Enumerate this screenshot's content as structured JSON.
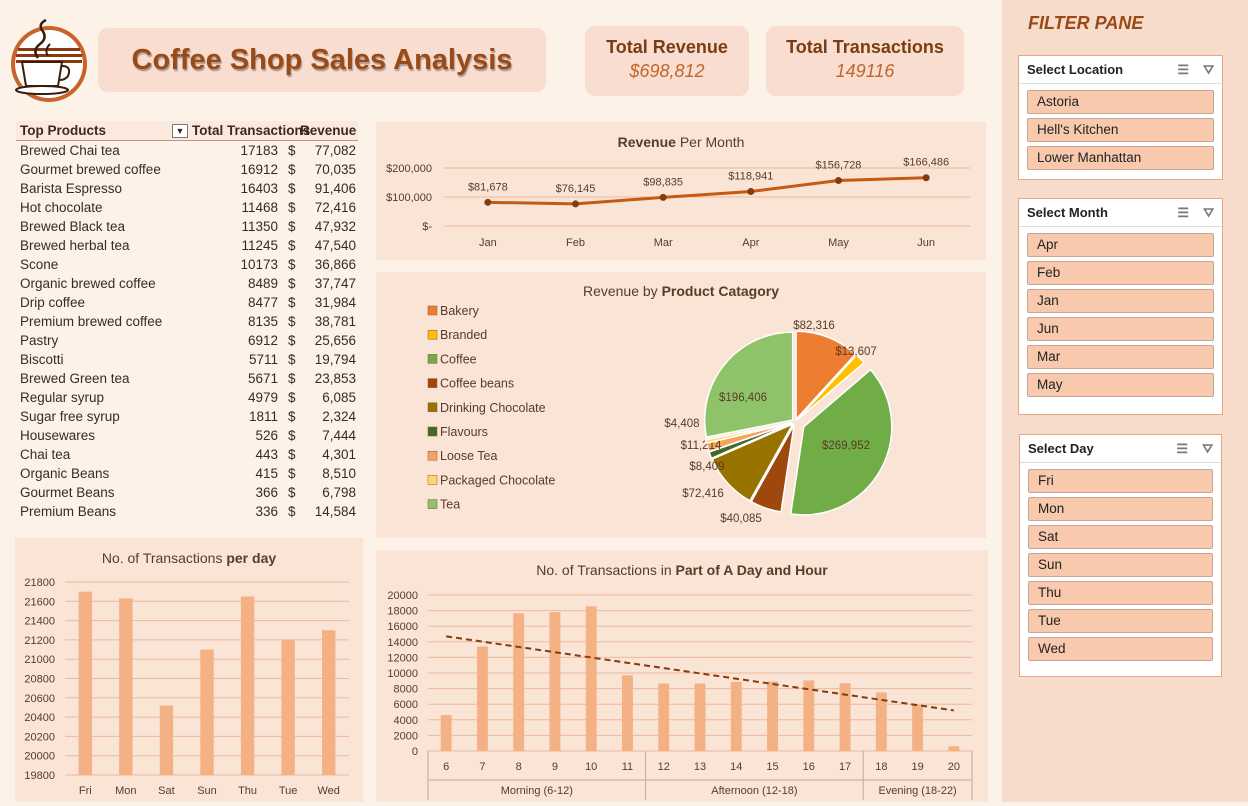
{
  "title": "Coffee Shop Sales Analysis",
  "kpis": {
    "revenue_label": "Total Revenue",
    "revenue_value": "$698,812",
    "trx_label": "Total Transactions",
    "trx_value": "149116"
  },
  "top_products": {
    "headers": [
      "Top Products",
      "Total Transactions",
      "Revenue"
    ],
    "rows": [
      {
        "name": "Brewed Chai tea",
        "trx": "17183",
        "rev": "77,082"
      },
      {
        "name": "Gourmet brewed coffee",
        "trx": "16912",
        "rev": "70,035"
      },
      {
        "name": "Barista Espresso",
        "trx": "16403",
        "rev": "91,406"
      },
      {
        "name": "Hot chocolate",
        "trx": "11468",
        "rev": "72,416"
      },
      {
        "name": "Brewed Black tea",
        "trx": "11350",
        "rev": "47,932"
      },
      {
        "name": "Brewed herbal tea",
        "trx": "11245",
        "rev": "47,540"
      },
      {
        "name": "Scone",
        "trx": "10173",
        "rev": "36,866"
      },
      {
        "name": "Organic brewed coffee",
        "trx": "8489",
        "rev": "37,747"
      },
      {
        "name": "Drip coffee",
        "trx": "8477",
        "rev": "31,984"
      },
      {
        "name": "Premium brewed coffee",
        "trx": "8135",
        "rev": "38,781"
      },
      {
        "name": "Pastry",
        "trx": "6912",
        "rev": "25,656"
      },
      {
        "name": "Biscotti",
        "trx": "5711",
        "rev": "19,794"
      },
      {
        "name": "Brewed Green tea",
        "trx": "5671",
        "rev": "23,853"
      },
      {
        "name": "Regular syrup",
        "trx": "4979",
        "rev": "6,085"
      },
      {
        "name": "Sugar free syrup",
        "trx": "1811",
        "rev": "2,324"
      },
      {
        "name": "Housewares",
        "trx": "526",
        "rev": "7,444"
      },
      {
        "name": "Chai tea",
        "trx": "443",
        "rev": "4,301"
      },
      {
        "name": "Organic Beans",
        "trx": "415",
        "rev": "8,510"
      },
      {
        "name": "Gourmet Beans",
        "trx": "366",
        "rev": "6,798"
      },
      {
        "name": "Premium Beans",
        "trx": "336",
        "rev": "14,584"
      }
    ]
  },
  "filter_pane": {
    "title": "FILTER PANE",
    "location": {
      "title": "Select Location",
      "items": [
        "Astoria",
        "Hell's Kitchen",
        "Lower Manhattan"
      ]
    },
    "month": {
      "title": "Select Month",
      "items": [
        "Apr",
        "Feb",
        "Jan",
        "Jun",
        "Mar",
        "May"
      ]
    },
    "day": {
      "title": "Select Day",
      "items": [
        "Fri",
        "Mon",
        "Sat",
        "Sun",
        "Thu",
        "Tue",
        "Wed"
      ]
    }
  },
  "currency_symbol": "$",
  "chart_data": [
    {
      "id": "revenue_month",
      "type": "line",
      "title_bold": "Revenue",
      "title_rest": " Per Month",
      "categories": [
        "Jan",
        "Feb",
        "Mar",
        "Apr",
        "May",
        "Jun"
      ],
      "values": [
        81678,
        76145,
        98835,
        118941,
        156728,
        166486
      ],
      "labels": [
        "$81,678",
        "$76,145",
        "$98,835",
        "$118,941",
        "$156,728",
        "$166,486"
      ],
      "ylim": [
        0,
        200000
      ],
      "yticks": [
        "$200,000",
        "$100,000",
        "$-"
      ],
      "color": "#c55a11"
    },
    {
      "id": "category_pie",
      "type": "pie",
      "title_rest": "Revenue by ",
      "title_bold": "Product Catagory",
      "categories": [
        "Bakery",
        "Branded",
        "Coffee",
        "Coffee beans",
        "Drinking Chocolate",
        "Flavours",
        "Loose Tea",
        "Packaged Chocolate",
        "Tea"
      ],
      "values": [
        82316,
        13607,
        269952,
        40085,
        72416,
        8409,
        11214,
        4408,
        196406
      ],
      "labels": [
        "$82,316",
        "$13,607",
        "$269,952",
        "$40,085",
        "$72,416",
        "$8,409",
        "$11,214",
        "$4,408",
        "$196,406"
      ],
      "colors": [
        "#ed7d31",
        "#ffc000",
        "#70ad47",
        "#9e480e",
        "#997300",
        "#43682b",
        "#f4a460",
        "#ffd966",
        "#8fc36a"
      ]
    },
    {
      "id": "trx_day",
      "type": "bar",
      "title_rest": "No. of Transactions ",
      "title_bold": "per day",
      "categories": [
        "Fri",
        "Mon",
        "Sat",
        "Sun",
        "Thu",
        "Tue",
        "Wed"
      ],
      "values": [
        21700,
        21630,
        20520,
        21100,
        21650,
        21200,
        21300
      ],
      "ylim": [
        19800,
        21800
      ],
      "yticks": [
        "21800",
        "21600",
        "21400",
        "21200",
        "21000",
        "20800",
        "20600",
        "20400",
        "20200",
        "20000",
        "19800"
      ],
      "color": "#f4b183"
    },
    {
      "id": "trx_hour",
      "type": "bar",
      "title_rest": "No. of Transactions in ",
      "title_bold": "Part of A Day and Hour",
      "categories": [
        "6",
        "7",
        "8",
        "9",
        "10",
        "11",
        "12",
        "13",
        "14",
        "15",
        "16",
        "17",
        "18",
        "19",
        "20"
      ],
      "values": [
        4600,
        13400,
        17650,
        17800,
        18550,
        9700,
        8650,
        8650,
        8850,
        8900,
        9050,
        8700,
        7500,
        5900,
        600
      ],
      "groups": [
        {
          "label": "Morning (6-12)",
          "count": 6
        },
        {
          "label": "Afternoon (12-18)",
          "count": 6
        },
        {
          "label": "Evening (18-22)",
          "count": 3
        }
      ],
      "ylim": [
        0,
        20000
      ],
      "yticks": [
        "20000",
        "18000",
        "16000",
        "14000",
        "12000",
        "10000",
        "8000",
        "6000",
        "4000",
        "2000",
        "0"
      ],
      "trendline": [
        14700,
        5200
      ],
      "color": "#f4b183",
      "trend_color": "#843c0c"
    }
  ]
}
